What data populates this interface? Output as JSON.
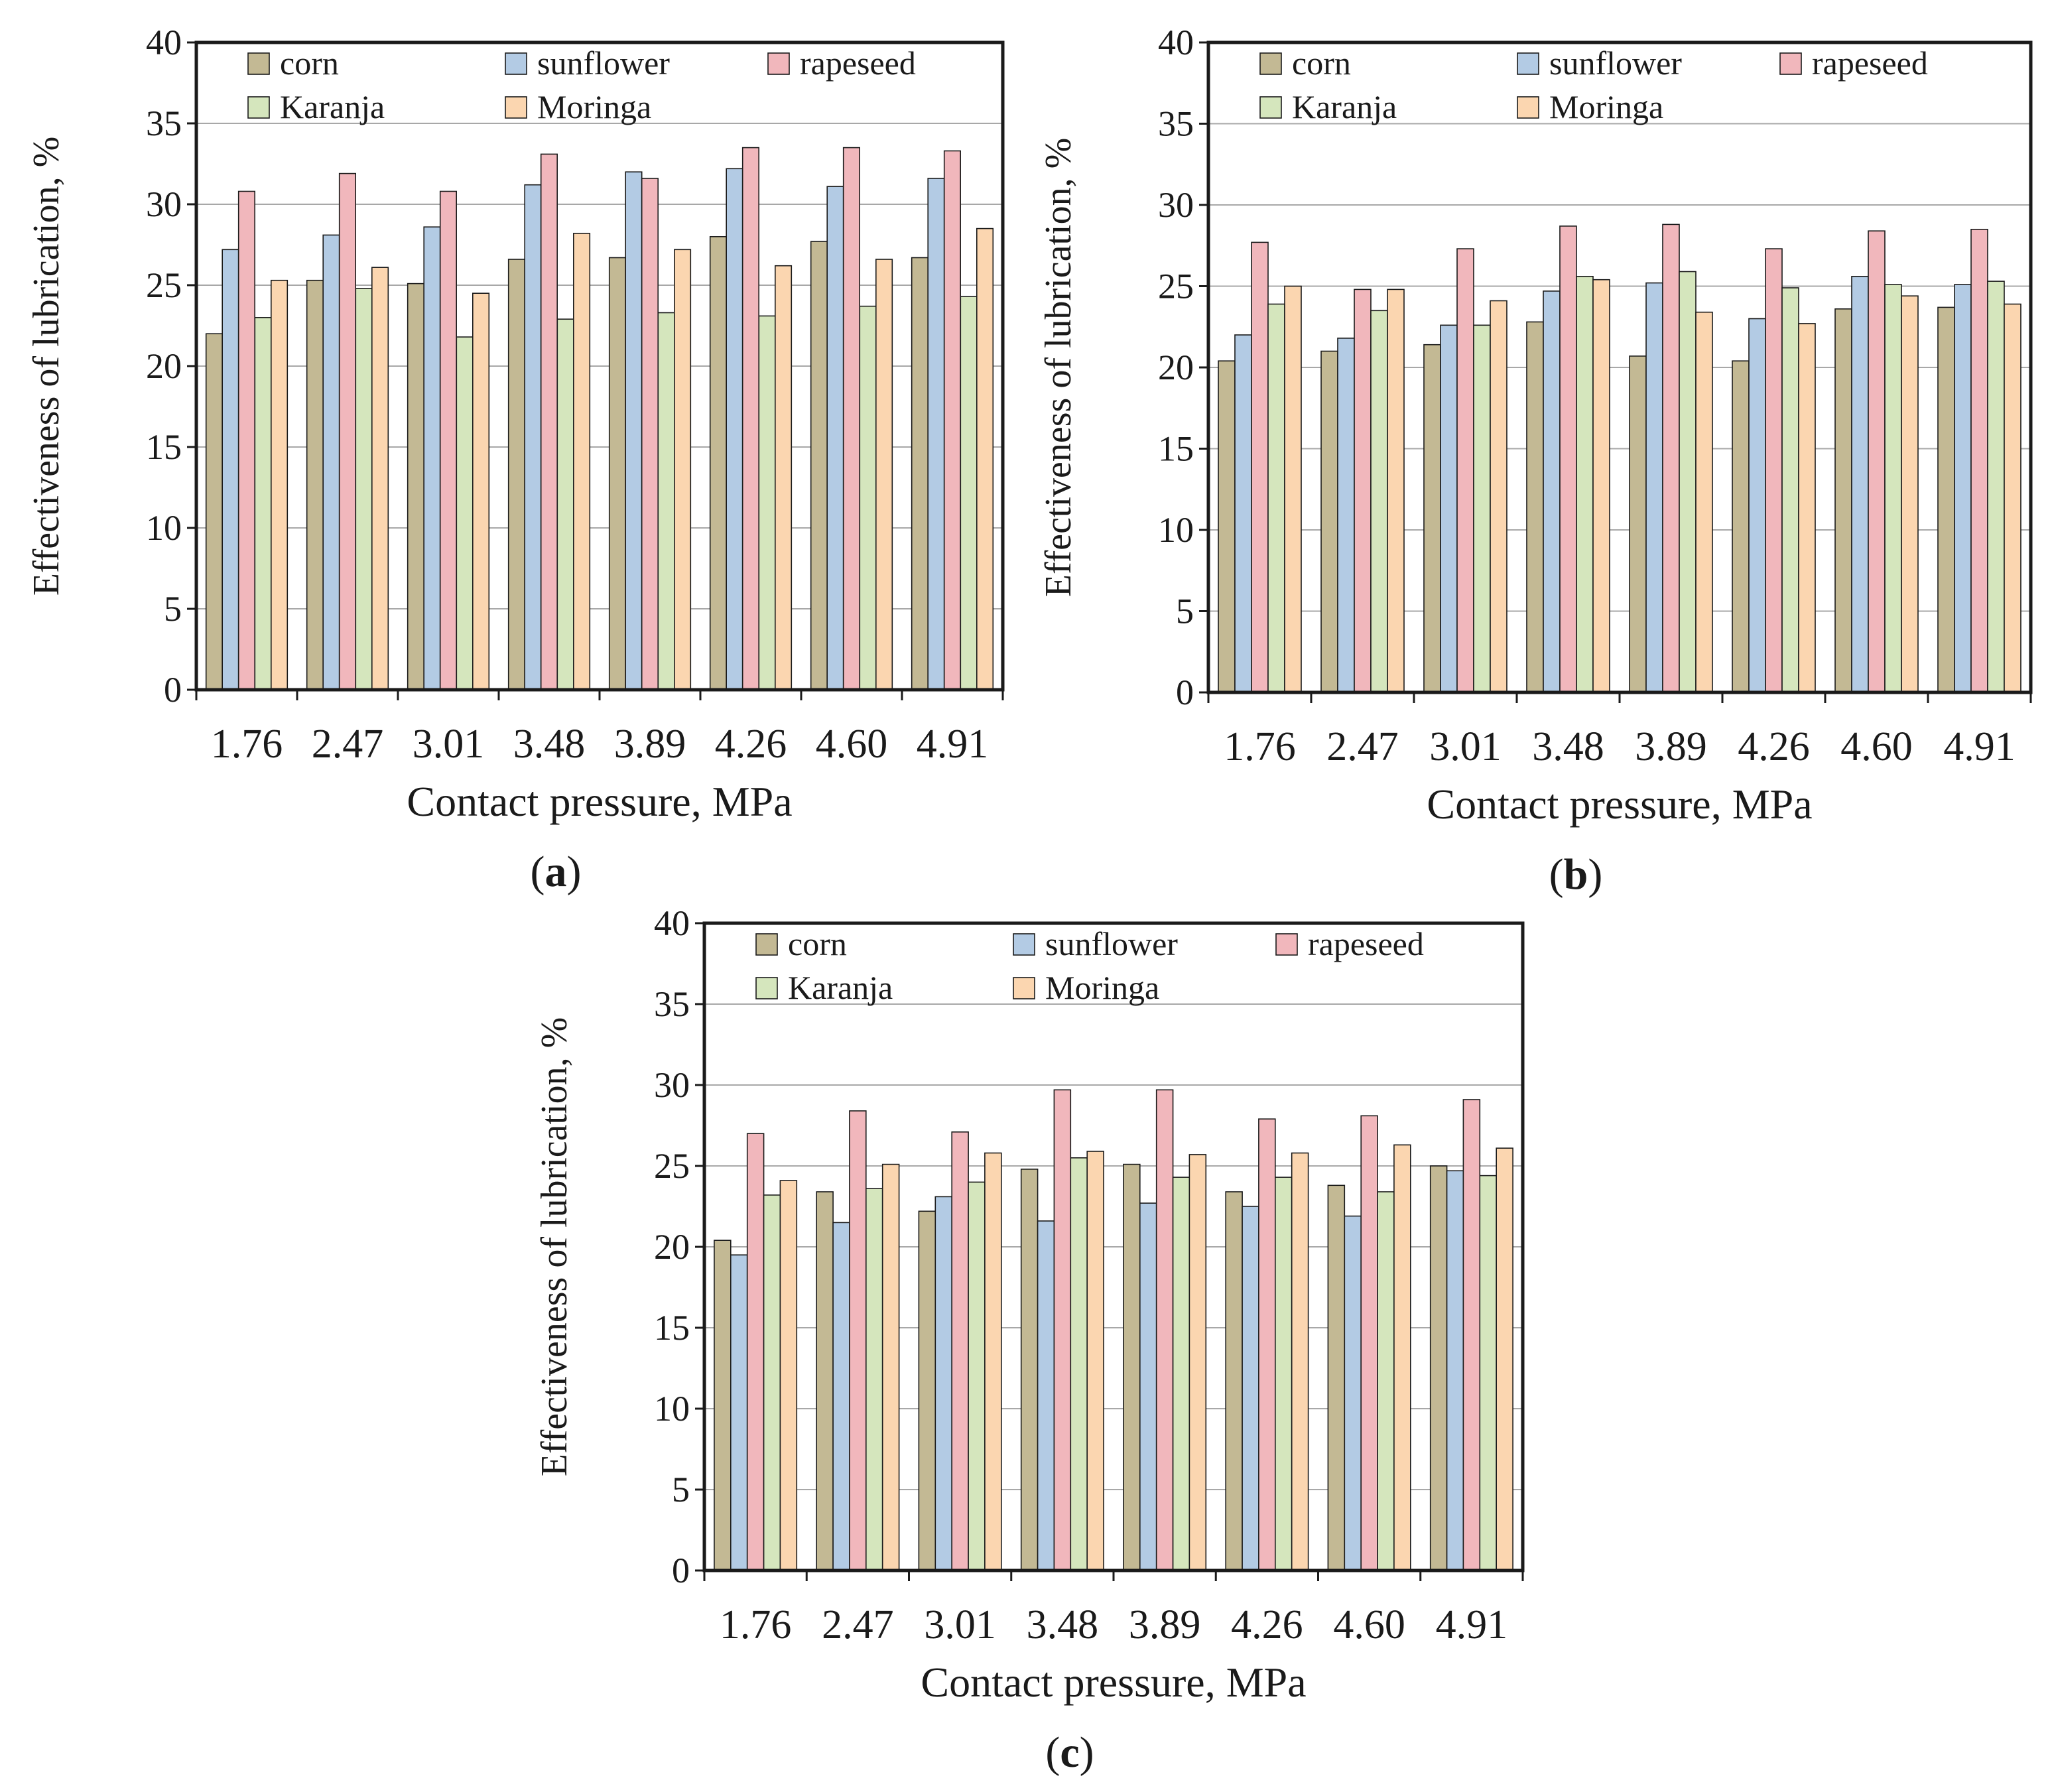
{
  "chart_data": [
    {
      "panel_label": "a",
      "type": "bar",
      "xlabel": "Contact pressure, MPa",
      "ylabel": "Effectiveness of lubrication, %",
      "categories": [
        "1.76",
        "2.47",
        "3.01",
        "3.48",
        "3.89",
        "4.26",
        "4.60",
        "4.91"
      ],
      "ylim": [
        0,
        40
      ],
      "yticks": [
        0,
        5,
        10,
        15,
        20,
        25,
        30,
        35,
        40
      ],
      "grid": true,
      "legend_position": "top",
      "series": [
        {
          "name": "corn",
          "color": "#c3b994",
          "values": [
            22.0,
            25.3,
            25.1,
            26.6,
            26.7,
            28.0,
            27.7,
            26.7
          ]
        },
        {
          "name": "sunflower",
          "color": "#b3cbe4",
          "values": [
            27.2,
            28.1,
            28.6,
            31.2,
            32.0,
            32.2,
            31.1,
            31.6
          ]
        },
        {
          "name": "rapeseed",
          "color": "#f1b7bc",
          "values": [
            30.8,
            31.9,
            30.8,
            33.1,
            31.6,
            33.5,
            33.5,
            33.3
          ]
        },
        {
          "name": "Karanja",
          "color": "#d5e6bd",
          "values": [
            23.0,
            24.8,
            21.8,
            22.9,
            23.3,
            23.1,
            23.7,
            24.3
          ]
        },
        {
          "name": "Moringa",
          "color": "#fbd6b0",
          "values": [
            25.3,
            26.1,
            24.5,
            28.2,
            27.2,
            26.2,
            26.6,
            28.5
          ]
        }
      ]
    },
    {
      "panel_label": "b",
      "type": "bar",
      "xlabel": "Contact pressure, MPa",
      "ylabel": "Effectiveness of lubrication, %",
      "categories": [
        "1.76",
        "2.47",
        "3.01",
        "3.48",
        "3.89",
        "4.26",
        "4.60",
        "4.91"
      ],
      "ylim": [
        0,
        40
      ],
      "yticks": [
        0,
        5,
        10,
        15,
        20,
        25,
        30,
        35,
        40
      ],
      "grid": true,
      "legend_position": "top",
      "series": [
        {
          "name": "corn",
          "color": "#c3b994",
          "values": [
            20.4,
            21.0,
            21.4,
            22.8,
            20.7,
            20.4,
            23.6,
            23.7
          ]
        },
        {
          "name": "sunflower",
          "color": "#b3cbe4",
          "values": [
            22.0,
            21.8,
            22.6,
            24.7,
            25.2,
            23.0,
            25.6,
            25.1
          ]
        },
        {
          "name": "rapeseed",
          "color": "#f1b7bc",
          "values": [
            27.7,
            24.8,
            27.3,
            28.7,
            28.8,
            27.3,
            28.4,
            28.5
          ]
        },
        {
          "name": "Karanja",
          "color": "#d5e6bd",
          "values": [
            23.9,
            23.5,
            22.6,
            25.6,
            25.9,
            24.9,
            25.1,
            25.3
          ]
        },
        {
          "name": "Moringa",
          "color": "#fbd6b0",
          "values": [
            25.0,
            24.8,
            24.1,
            25.4,
            23.4,
            22.7,
            24.4,
            23.9
          ]
        }
      ]
    },
    {
      "panel_label": "c",
      "type": "bar",
      "xlabel": "Contact pressure, MPa",
      "ylabel": "Effectiveness of lubrication, %",
      "categories": [
        "1.76",
        "2.47",
        "3.01",
        "3.48",
        "3.89",
        "4.26",
        "4.60",
        "4.91"
      ],
      "ylim": [
        0,
        40
      ],
      "yticks": [
        0,
        5,
        10,
        15,
        20,
        25,
        30,
        35,
        40
      ],
      "grid": true,
      "legend_position": "top",
      "series": [
        {
          "name": "corn",
          "color": "#c3b994",
          "values": [
            20.4,
            23.4,
            22.2,
            24.8,
            25.1,
            23.4,
            23.8,
            25.0
          ]
        },
        {
          "name": "sunflower",
          "color": "#b3cbe4",
          "values": [
            19.5,
            21.5,
            23.1,
            21.6,
            22.7,
            22.5,
            21.9,
            24.7
          ]
        },
        {
          "name": "rapeseed",
          "color": "#f1b7bc",
          "values": [
            27.0,
            28.4,
            27.1,
            29.7,
            29.7,
            27.9,
            28.1,
            29.1
          ]
        },
        {
          "name": "Karanja",
          "color": "#d5e6bd",
          "values": [
            23.2,
            23.6,
            24.0,
            25.5,
            24.3,
            24.3,
            23.4,
            24.4
          ]
        },
        {
          "name": "Moringa",
          "color": "#fbd6b0",
          "values": [
            24.1,
            25.1,
            25.8,
            25.9,
            25.7,
            25.8,
            26.3,
            26.1
          ]
        }
      ]
    }
  ]
}
